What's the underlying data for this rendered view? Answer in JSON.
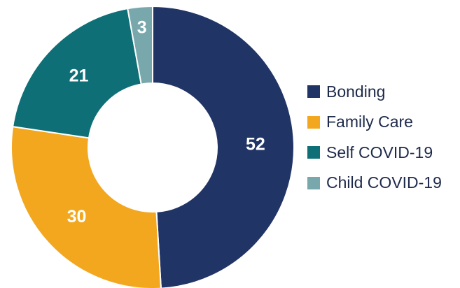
{
  "chart_data": {
    "type": "pie",
    "variant": "donut",
    "categories": [
      "Bonding",
      "Family Care",
      "Self COVID-19",
      "Child COVID-19"
    ],
    "values": [
      52,
      30,
      21,
      3
    ],
    "colors": [
      "#213466",
      "#f2a71f",
      "#0e6f76",
      "#78a8ab"
    ],
    "legend_position": "right",
    "data_labels": [
      "52",
      "30",
      "21",
      "3"
    ]
  }
}
